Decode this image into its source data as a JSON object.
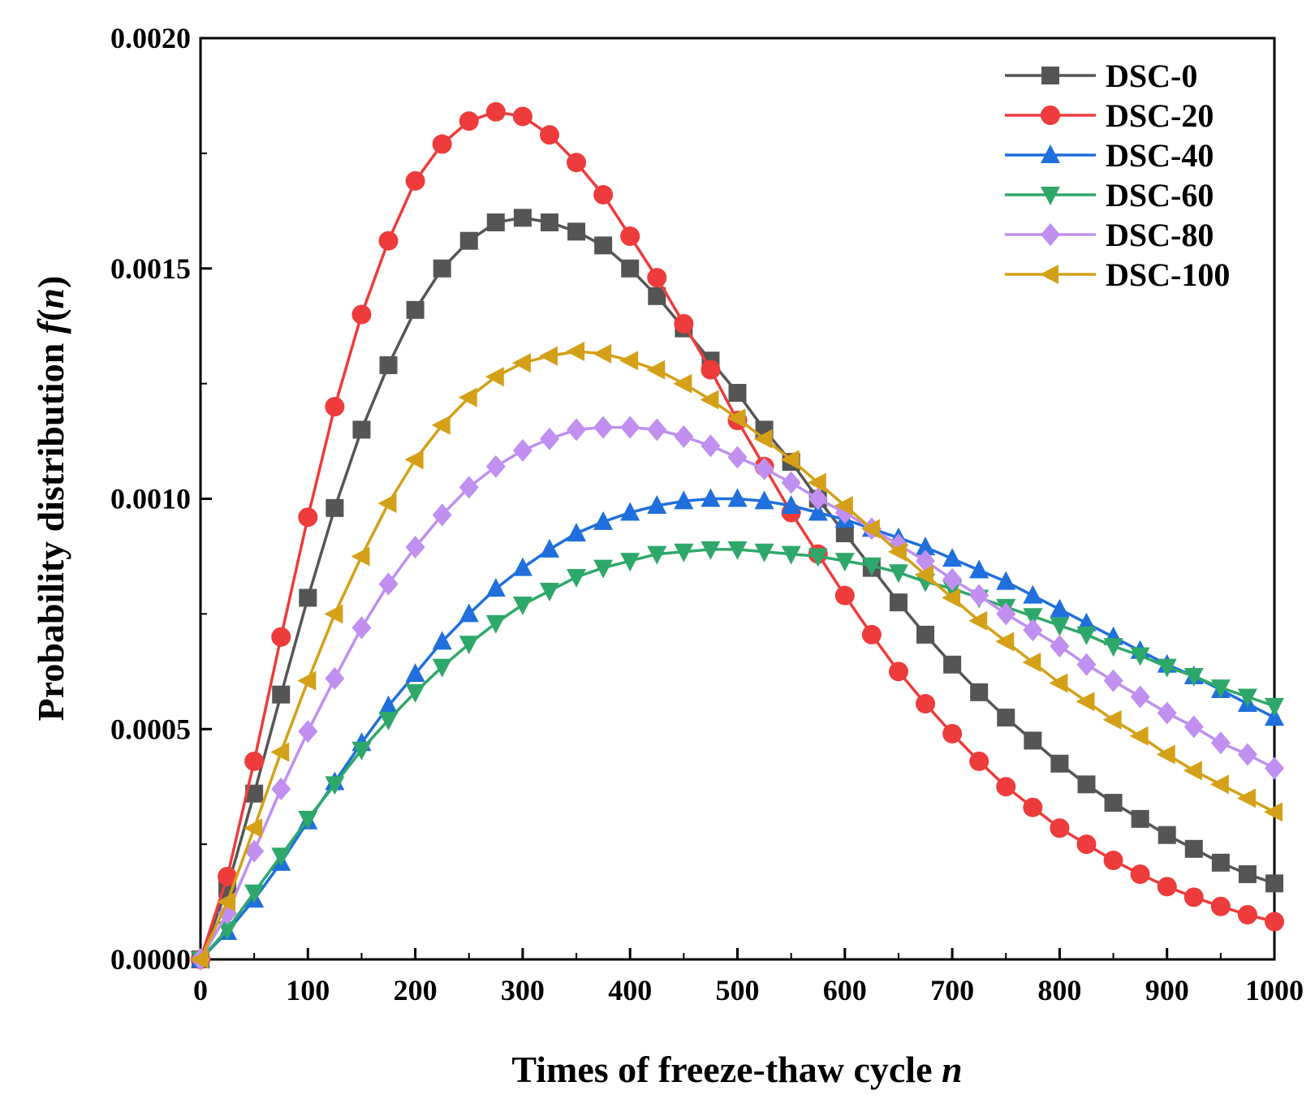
{
  "chart_data": {
    "type": "line",
    "title": "",
    "xlabel": "Times of freeze-thaw cycle",
    "xlabel_var": "n",
    "ylabel": "Probability distribution",
    "ylabel_func": "f",
    "ylabel_var": "n",
    "xlim": [
      0,
      1000
    ],
    "ylim": [
      0,
      0.002
    ],
    "xticks": [
      0,
      100,
      200,
      300,
      400,
      500,
      600,
      700,
      800,
      900,
      1000
    ],
    "xtick_labels": [
      "0",
      "100",
      "200",
      "300",
      "400",
      "500",
      "600",
      "700",
      "800",
      "900",
      "1000"
    ],
    "yticks": [
      0,
      0.0005,
      0.001,
      0.0015,
      0.002
    ],
    "ytick_labels": [
      "0.0000",
      "0.0005",
      "0.0010",
      "0.0015",
      "0.0020"
    ],
    "grid": false,
    "legend_position": "top-right",
    "x": [
      0,
      25,
      50,
      75,
      100,
      125,
      150,
      175,
      200,
      225,
      250,
      275,
      300,
      325,
      350,
      375,
      400,
      425,
      450,
      475,
      500,
      525,
      550,
      575,
      600,
      625,
      650,
      675,
      700,
      725,
      750,
      775,
      800,
      825,
      850,
      875,
      900,
      925,
      950,
      975,
      1000
    ],
    "series": [
      {
        "name": "DSC-0",
        "color": "#555555",
        "marker": "square",
        "values": [
          0,
          0.000155,
          0.00036,
          0.000575,
          0.000785,
          0.00098,
          0.00115,
          0.00129,
          0.00141,
          0.0015,
          0.00156,
          0.0016,
          0.00161,
          0.0016,
          0.00158,
          0.00155,
          0.0015,
          0.00144,
          0.00137,
          0.0013,
          0.00123,
          0.00115,
          0.00108,
          0.001,
          0.000925,
          0.00085,
          0.000775,
          0.000705,
          0.00064,
          0.00058,
          0.000525,
          0.000475,
          0.000425,
          0.00038,
          0.00034,
          0.000305,
          0.00027,
          0.00024,
          0.00021,
          0.000185,
          0.000165
        ]
      },
      {
        "name": "DSC-20",
        "color": "#ee3b3b",
        "marker": "circle",
        "values": [
          0,
          0.00018,
          0.00043,
          0.0007,
          0.00096,
          0.0012,
          0.0014,
          0.00156,
          0.00169,
          0.00177,
          0.00182,
          0.00184,
          0.00183,
          0.00179,
          0.00173,
          0.00166,
          0.00157,
          0.00148,
          0.00138,
          0.00128,
          0.00117,
          0.00107,
          0.00097,
          0.00088,
          0.00079,
          0.000705,
          0.000625,
          0.000555,
          0.00049,
          0.00043,
          0.000375,
          0.00033,
          0.000285,
          0.00025,
          0.000215,
          0.000185,
          0.000158,
          0.000135,
          0.000115,
          9.7e-05,
          8.2e-05
        ]
      },
      {
        "name": "DSC-40",
        "color": "#1f6fdc",
        "marker": "triangle-up",
        "values": [
          0,
          6e-05,
          0.00013,
          0.00021,
          0.0003,
          0.000385,
          0.00047,
          0.00055,
          0.00062,
          0.00069,
          0.00075,
          0.000805,
          0.00085,
          0.00089,
          0.000925,
          0.00095,
          0.00097,
          0.000985,
          0.000995,
          0.001,
          0.001,
          0.000995,
          0.000985,
          0.00097,
          0.000955,
          0.000935,
          0.000915,
          0.000895,
          0.00087,
          0.000845,
          0.00082,
          0.00079,
          0.00076,
          0.00073,
          0.0007,
          0.00067,
          0.00064,
          0.000615,
          0.000585,
          0.000555,
          0.000525
        ]
      },
      {
        "name": "DSC-60",
        "color": "#2ea86a",
        "marker": "triangle-down",
        "values": [
          0,
          6.5e-05,
          0.000145,
          0.000225,
          0.000305,
          0.00038,
          0.000455,
          0.00052,
          0.00058,
          0.000635,
          0.000685,
          0.00073,
          0.00077,
          0.0008,
          0.00083,
          0.00085,
          0.000865,
          0.00088,
          0.000885,
          0.00089,
          0.00089,
          0.000885,
          0.00088,
          0.000875,
          0.000865,
          0.000855,
          0.00084,
          0.00082,
          0.000805,
          0.000785,
          0.000765,
          0.000745,
          0.000725,
          0.000705,
          0.00068,
          0.00066,
          0.000635,
          0.000615,
          0.00059,
          0.00057,
          0.00055
        ]
      },
      {
        "name": "DSC-80",
        "color": "#c08ff0",
        "marker": "diamond",
        "values": [
          0,
          0.0001,
          0.000235,
          0.00037,
          0.000495,
          0.00061,
          0.00072,
          0.000815,
          0.000895,
          0.000965,
          0.001025,
          0.00107,
          0.001105,
          0.00113,
          0.00115,
          0.001155,
          0.001155,
          0.00115,
          0.001135,
          0.001115,
          0.00109,
          0.001065,
          0.001035,
          0.001,
          0.00097,
          0.000935,
          0.0009,
          0.000865,
          0.000825,
          0.00079,
          0.00075,
          0.000715,
          0.00068,
          0.00064,
          0.000605,
          0.00057,
          0.000535,
          0.000505,
          0.00047,
          0.000445,
          0.000415
        ]
      },
      {
        "name": "DSC-100",
        "color": "#d4a017",
        "marker": "triangle-left",
        "values": [
          0,
          0.000125,
          0.000285,
          0.00045,
          0.000605,
          0.00075,
          0.000875,
          0.00099,
          0.001085,
          0.00116,
          0.00122,
          0.001265,
          0.001295,
          0.00131,
          0.00132,
          0.001315,
          0.0013,
          0.00128,
          0.00125,
          0.001215,
          0.001175,
          0.00113,
          0.001085,
          0.001035,
          0.000985,
          0.000935,
          0.000885,
          0.000835,
          0.000785,
          0.000735,
          0.00069,
          0.000645,
          0.0006,
          0.00056,
          0.00052,
          0.000485,
          0.000445,
          0.00041,
          0.00038,
          0.00035,
          0.00032
        ]
      }
    ]
  }
}
